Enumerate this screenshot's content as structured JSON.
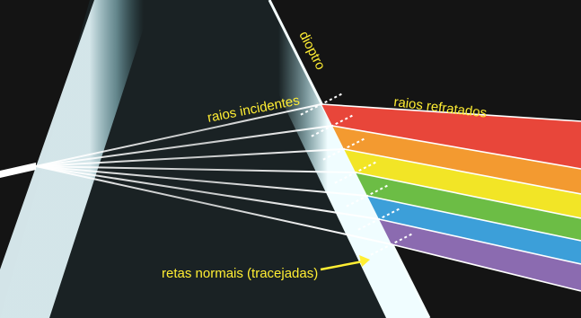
{
  "labels": {
    "dioptro": "dioptro",
    "raios_incidentes": "raios incidentes",
    "raios_refratados": "raios refratados",
    "retas_normais": "retas normais (tracejadas)"
  },
  "colors": {
    "background": "#141414",
    "label": "#ffee33",
    "incident_ray": "#ffffff",
    "normal_line": "#ffffff",
    "prism_glow": "#bff4fb",
    "spectrum": [
      "#e8463a",
      "#f39a30",
      "#f2e526",
      "#6cbd45",
      "#3c9fd9",
      "#8b6bb0"
    ]
  },
  "spectrum_order": [
    "red",
    "orange",
    "yellow",
    "green",
    "blue",
    "violet"
  ],
  "incident_ray_count": 7,
  "normal_line_count": 7,
  "icons": [
    "arrow-icon"
  ]
}
